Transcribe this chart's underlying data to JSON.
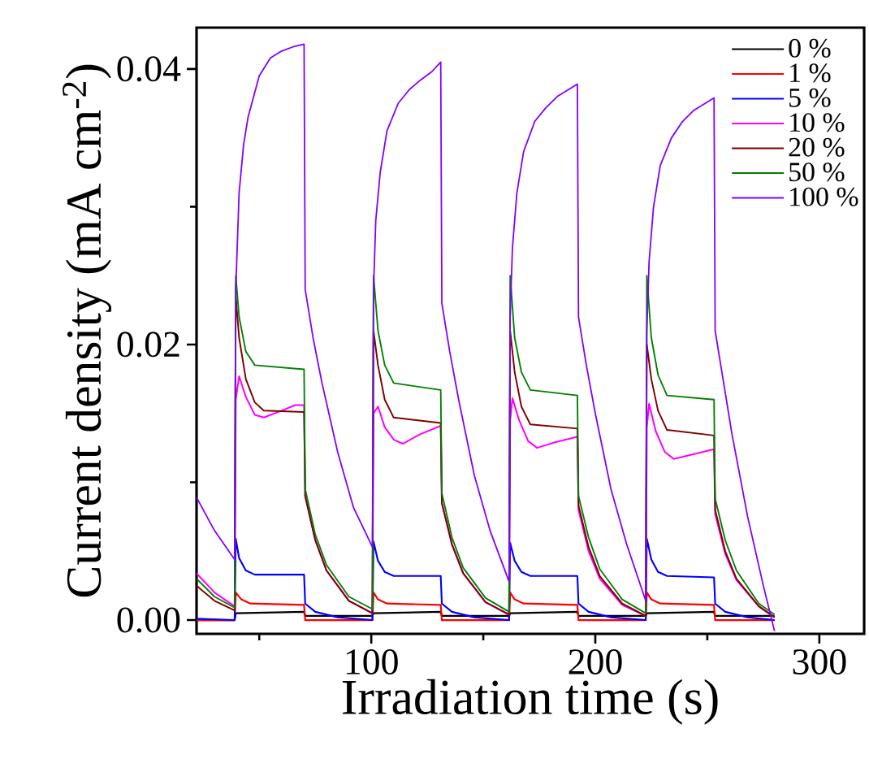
{
  "chart_data": {
    "type": "line",
    "xlabel": "Irradiation time (s)",
    "ylabel": "Current density (mA cm$^{-2}$)",
    "xlim": [
      22,
      320
    ],
    "ylim": [
      -0.001,
      0.043
    ],
    "xticks": [
      {
        "value": 50,
        "label": null
      },
      100,
      {
        "value": 150,
        "label": null
      },
      200,
      {
        "value": 250,
        "label": null
      },
      300
    ],
    "yticks": [
      {
        "value": 0,
        "label": "0.00"
      },
      {
        "value": 0.01,
        "label": null
      },
      {
        "value": 0.02,
        "label": "0.02"
      },
      {
        "value": 0.03,
        "label": null
      },
      {
        "value": 0.04,
        "label": "0.04"
      }
    ],
    "legend": "top right",
    "series": [
      {
        "name": "0 %",
        "color": "#000000",
        "x": [
          22,
          39,
          39.5,
          70,
          70.5,
          100.5,
          101,
          131,
          131.5,
          161.5,
          162,
          192,
          192.5,
          222.5,
          223,
          253,
          253.5,
          280
        ],
        "values": [
          0.0,
          0.0,
          0.0005,
          0.0006,
          0.0003,
          0.0003,
          0.0005,
          0.0006,
          0.0003,
          0.0003,
          0.0005,
          0.0006,
          0.0003,
          0.0003,
          0.0005,
          0.0006,
          0.0003,
          0.0003
        ]
      },
      {
        "name": "1 %",
        "color": "#ff0000",
        "x": [
          22,
          39,
          39.5,
          42,
          46,
          70,
          70.5,
          100.5,
          101,
          103,
          107,
          131,
          131.5,
          161.5,
          162,
          164,
          168,
          192,
          192.5,
          222.5,
          223,
          225,
          229,
          253,
          253.5,
          280
        ],
        "values": [
          0.0,
          0.0,
          0.002,
          0.0015,
          0.0012,
          0.0011,
          0.0,
          0.0,
          0.002,
          0.0015,
          0.0012,
          0.0011,
          0.0,
          0.0,
          0.002,
          0.0015,
          0.0012,
          0.0011,
          0.0,
          0.0,
          0.002,
          0.0015,
          0.0012,
          0.0011,
          0.0,
          0.0
        ]
      },
      {
        "name": "5 %",
        "color": "#0000ff",
        "x": [
          22,
          39,
          39.5,
          41,
          44,
          48,
          70,
          70.5,
          75,
          85,
          100.5,
          101,
          103,
          106,
          110,
          131,
          131.5,
          136,
          146,
          161.5,
          162,
          164,
          167,
          171,
          192,
          192.5,
          197,
          207,
          222.5,
          223,
          225,
          228,
          232,
          253,
          253.5,
          258,
          268,
          280
        ],
        "values": [
          0.0001,
          0.0,
          0.0059,
          0.0045,
          0.0036,
          0.0033,
          0.0033,
          0.0012,
          0.0006,
          0.0002,
          0.0,
          0.0057,
          0.0043,
          0.0035,
          0.0032,
          0.0032,
          0.0012,
          0.0006,
          0.0002,
          0.0,
          0.0056,
          0.0043,
          0.0035,
          0.0032,
          0.0032,
          0.0012,
          0.0006,
          0.0002,
          0.0,
          0.0059,
          0.0044,
          0.0035,
          0.0032,
          0.0031,
          0.0012,
          0.0006,
          0.0002,
          0.0
        ]
      },
      {
        "name": "10 %",
        "color": "#ff00ff",
        "x": [
          22,
          30,
          39,
          39.5,
          41,
          44,
          48,
          52,
          60,
          66,
          70,
          70.5,
          75,
          80,
          90,
          100.5,
          101,
          103,
          106,
          110,
          114,
          122,
          131,
          131.5,
          136,
          141,
          151,
          161.5,
          162,
          163,
          166,
          170,
          174,
          182,
          192,
          192.5,
          197,
          202,
          212,
          222.5,
          223,
          224,
          227,
          231,
          235,
          243,
          253,
          253.5,
          258,
          263,
          273,
          280
        ],
        "values": [
          0.0034,
          0.002,
          0.001,
          0.016,
          0.0177,
          0.0162,
          0.0149,
          0.0147,
          0.0152,
          0.0156,
          0.0156,
          0.009,
          0.0058,
          0.0036,
          0.0014,
          0.0005,
          0.015,
          0.0155,
          0.014,
          0.0131,
          0.0128,
          0.0135,
          0.0141,
          0.0085,
          0.0055,
          0.0034,
          0.0013,
          0.0004,
          0.0145,
          0.0161,
          0.0145,
          0.013,
          0.0125,
          0.0129,
          0.0133,
          0.008,
          0.005,
          0.003,
          0.0011,
          0.0003,
          0.014,
          0.0157,
          0.0137,
          0.0122,
          0.0117,
          0.012,
          0.0124,
          0.0077,
          0.0048,
          0.0029,
          0.001,
          0.0002
        ]
      },
      {
        "name": "20 %",
        "color": "#800000",
        "x": [
          22,
          30,
          39,
          39.5,
          41,
          44,
          48,
          52,
          70,
          70.5,
          75,
          80,
          90,
          100.5,
          101,
          103,
          106,
          110,
          131,
          131.5,
          136,
          141,
          151,
          161.5,
          162,
          164,
          167,
          171,
          192,
          192.5,
          197,
          202,
          212,
          222.5,
          223,
          225,
          228,
          232,
          253,
          253.5,
          258,
          263,
          273,
          280
        ],
        "values": [
          0.0025,
          0.0014,
          0.0007,
          0.0235,
          0.0205,
          0.0175,
          0.0158,
          0.0152,
          0.0151,
          0.009,
          0.0058,
          0.0036,
          0.0014,
          0.0005,
          0.021,
          0.0185,
          0.016,
          0.0147,
          0.0143,
          0.0085,
          0.0055,
          0.0034,
          0.0013,
          0.0004,
          0.021,
          0.018,
          0.0155,
          0.0142,
          0.0139,
          0.0083,
          0.0053,
          0.0032,
          0.0012,
          0.0003,
          0.02,
          0.0175,
          0.0152,
          0.0138,
          0.0134,
          0.008,
          0.005,
          0.003,
          0.001,
          0.0002
        ]
      },
      {
        "name": "50 %",
        "color": "#008000",
        "x": [
          22,
          30,
          39,
          39.5,
          41,
          44,
          48,
          70,
          70.5,
          75,
          80,
          90,
          100.5,
          101,
          103,
          106,
          110,
          131,
          131.5,
          136,
          141,
          151,
          161.5,
          162,
          164,
          167,
          171,
          192,
          192.5,
          197,
          202,
          212,
          222.5,
          223,
          225,
          228,
          232,
          253,
          253.5,
          258,
          263,
          273,
          280
        ],
        "values": [
          0.003,
          0.0017,
          0.0009,
          0.025,
          0.022,
          0.0195,
          0.0185,
          0.0182,
          0.0095,
          0.0062,
          0.004,
          0.0017,
          0.0008,
          0.025,
          0.021,
          0.0185,
          0.0172,
          0.0167,
          0.0092,
          0.006,
          0.0038,
          0.0016,
          0.0006,
          0.025,
          0.0205,
          0.018,
          0.0167,
          0.0163,
          0.009,
          0.006,
          0.0037,
          0.0015,
          0.0005,
          0.025,
          0.0205,
          0.0178,
          0.0163,
          0.016,
          0.0088,
          0.0058,
          0.0036,
          0.0012,
          0.0004
        ]
      },
      {
        "name": "100 %",
        "color": "#8000ff",
        "x": [
          22,
          30,
          39,
          39.5,
          41,
          43,
          45,
          50,
          55,
          60,
          65,
          70,
          70.5,
          74,
          78,
          85,
          92,
          100.5,
          101,
          102,
          104,
          107,
          112,
          117,
          122,
          127,
          131,
          131.5,
          135,
          139,
          146,
          153,
          161.5,
          162,
          163,
          165,
          168,
          173,
          178,
          183,
          188,
          192,
          192.5,
          196,
          200,
          207,
          214,
          222.5,
          223,
          224,
          226,
          229,
          234,
          239,
          244,
          249,
          253,
          253.5,
          257,
          261,
          268,
          275,
          280
        ],
        "values": [
          0.0089,
          0.0065,
          0.0044,
          0.024,
          0.031,
          0.0345,
          0.0365,
          0.0395,
          0.0408,
          0.0413,
          0.0416,
          0.0418,
          0.024,
          0.0205,
          0.0172,
          0.0122,
          0.0082,
          0.0053,
          0.024,
          0.029,
          0.0325,
          0.0355,
          0.0375,
          0.0385,
          0.0392,
          0.0398,
          0.0405,
          0.023,
          0.0195,
          0.016,
          0.0105,
          0.0065,
          0.0028,
          0.022,
          0.027,
          0.031,
          0.034,
          0.0362,
          0.0372,
          0.038,
          0.0385,
          0.0389,
          0.022,
          0.0185,
          0.015,
          0.0095,
          0.0055,
          0.0014,
          0.021,
          0.026,
          0.03,
          0.033,
          0.035,
          0.0362,
          0.037,
          0.0375,
          0.0379,
          0.021,
          0.0175,
          0.0135,
          0.0075,
          0.0025,
          -0.0008
        ]
      }
    ]
  }
}
